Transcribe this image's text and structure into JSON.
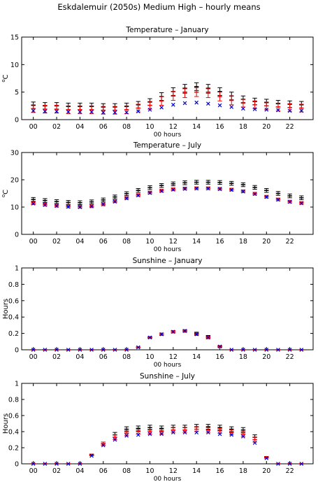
{
  "figure_title": "Eskdalemuir (2050s) Medium High – hourly means",
  "colors": {
    "black_series": "#000000",
    "red_series": "#ff0000",
    "blue_series": "#0000cc"
  },
  "chart_data": [
    {
      "type": "scatter",
      "title": "Temperature – January",
      "xlabel": "00 hours",
      "ylabel": "°C",
      "ylabel_super": "o",
      "ylabel_main": "C",
      "xlim": [
        -1,
        24
      ],
      "ylim": [
        0,
        15
      ],
      "yticks": [
        0,
        5,
        10,
        15
      ],
      "ytick_labels": [
        "0",
        "5",
        "10",
        "15"
      ],
      "xticks": [
        0,
        2,
        4,
        6,
        8,
        10,
        12,
        14,
        16,
        18,
        20,
        22
      ],
      "xtick_labels": [
        "00",
        "02",
        "04",
        "06",
        "08",
        "10",
        "12",
        "14",
        "16",
        "18",
        "20",
        "22"
      ],
      "x": [
        0,
        1,
        2,
        3,
        4,
        5,
        6,
        7,
        8,
        9,
        10,
        11,
        12,
        13,
        14,
        15,
        16,
        17,
        18,
        19,
        20,
        21,
        22,
        23
      ],
      "series": [
        {
          "style": "errorbar",
          "color": "black",
          "values": [
            2.6,
            2.5,
            2.5,
            2.4,
            2.4,
            2.4,
            2.3,
            2.3,
            2.4,
            2.7,
            3.2,
            4.2,
            5.1,
            5.7,
            6.0,
            5.7,
            5.1,
            4.3,
            3.7,
            3.3,
            3.1,
            2.9,
            2.8,
            2.7
          ],
          "err": [
            0.6,
            0.6,
            0.6,
            0.6,
            0.6,
            0.6,
            0.6,
            0.6,
            0.6,
            0.6,
            0.6,
            0.7,
            0.7,
            0.7,
            0.7,
            0.7,
            0.7,
            0.7,
            0.6,
            0.6,
            0.6,
            0.6,
            0.6,
            0.6
          ]
        },
        {
          "style": "errorbar",
          "color": "red",
          "values": [
            2.0,
            1.9,
            1.9,
            1.8,
            1.8,
            1.8,
            1.7,
            1.7,
            1.8,
            2.1,
            2.6,
            3.4,
            4.3,
            4.8,
            5.0,
            4.8,
            4.2,
            3.5,
            3.0,
            2.7,
            2.5,
            2.3,
            2.2,
            2.1
          ],
          "err": [
            0.7,
            0.7,
            0.7,
            0.7,
            0.7,
            0.7,
            0.7,
            0.7,
            0.7,
            0.7,
            0.7,
            0.8,
            0.8,
            0.8,
            0.8,
            0.8,
            0.8,
            0.8,
            0.7,
            0.7,
            0.7,
            0.7,
            0.7,
            0.7
          ]
        },
        {
          "style": "cross",
          "color": "blue",
          "values": [
            1.6,
            1.5,
            1.5,
            1.4,
            1.4,
            1.4,
            1.3,
            1.3,
            1.3,
            1.5,
            1.8,
            2.2,
            2.7,
            3.0,
            3.1,
            2.9,
            2.6,
            2.3,
            2.0,
            1.9,
            1.8,
            1.7,
            1.6,
            1.6
          ]
        }
      ]
    },
    {
      "type": "scatter",
      "title": "Temperature – July",
      "xlabel": "00 hours",
      "ylabel": "°C",
      "ylabel_super": "o",
      "ylabel_main": "C",
      "xlim": [
        -1,
        24
      ],
      "ylim": [
        0,
        30
      ],
      "yticks": [
        0,
        10,
        20,
        30
      ],
      "ytick_labels": [
        "0",
        "10",
        "20",
        "30"
      ],
      "xticks": [
        0,
        2,
        4,
        6,
        8,
        10,
        12,
        14,
        16,
        18,
        20,
        22
      ],
      "xtick_labels": [
        "00",
        "02",
        "04",
        "06",
        "08",
        "10",
        "12",
        "14",
        "16",
        "18",
        "20",
        "22"
      ],
      "x": [
        0,
        1,
        2,
        3,
        4,
        5,
        6,
        7,
        8,
        9,
        10,
        11,
        12,
        13,
        14,
        15,
        16,
        17,
        18,
        19,
        20,
        21,
        22,
        23
      ],
      "series": [
        {
          "style": "errorbar",
          "color": "black",
          "values": [
            12.8,
            12.4,
            12.0,
            11.7,
            11.6,
            11.9,
            12.6,
            13.7,
            14.9,
            16.1,
            17.1,
            17.9,
            18.5,
            18.9,
            19.1,
            19.1,
            19.0,
            18.7,
            18.2,
            17.2,
            16.1,
            15.0,
            14.1,
            13.4
          ],
          "err": [
            0.7,
            0.7,
            0.7,
            0.7,
            0.7,
            0.7,
            0.7,
            0.7,
            0.7,
            0.7,
            0.7,
            0.7,
            0.7,
            0.7,
            0.7,
            0.7,
            0.7,
            0.7,
            0.7,
            0.7,
            0.7,
            0.7,
            0.7,
            0.7
          ]
        },
        {
          "style": "errorbar",
          "color": "red",
          "values": [
            11.4,
            10.9,
            10.5,
            10.2,
            10.1,
            10.3,
            11.0,
            12.1,
            13.3,
            14.4,
            15.3,
            16.0,
            16.5,
            16.8,
            16.9,
            16.9,
            16.7,
            16.4,
            15.8,
            14.9,
            13.8,
            12.8,
            12.0,
            11.5
          ],
          "err": [
            0.5,
            0.5,
            0.5,
            0.5,
            0.5,
            0.5,
            0.5,
            0.5,
            0.5,
            0.5,
            0.5,
            0.5,
            0.5,
            0.5,
            0.5,
            0.5,
            0.5,
            0.5,
            0.5,
            0.5,
            0.5,
            0.5,
            0.5,
            0.5
          ]
        },
        {
          "style": "cross",
          "color": "blue",
          "values": [
            11.3,
            10.8,
            10.4,
            10.1,
            10.0,
            10.3,
            11.0,
            12.0,
            13.2,
            14.3,
            15.2,
            15.9,
            16.4,
            16.7,
            16.8,
            16.8,
            16.6,
            16.3,
            15.7,
            14.8,
            13.7,
            12.7,
            11.9,
            11.4
          ]
        }
      ]
    },
    {
      "type": "scatter",
      "title": "Sunshine – January",
      "xlabel": "00 hours",
      "ylabel": "Hours",
      "xlim": [
        -1,
        24
      ],
      "ylim": [
        0,
        1
      ],
      "yticks": [
        0,
        0.2,
        0.4,
        0.6,
        0.8,
        1
      ],
      "ytick_labels": [
        "0",
        "0.2",
        "0.4",
        "0.6",
        "0.8",
        "1"
      ],
      "xticks": [
        0,
        2,
        4,
        6,
        8,
        10,
        12,
        14,
        16,
        18,
        20,
        22
      ],
      "xtick_labels": [
        "00",
        "02",
        "04",
        "06",
        "08",
        "10",
        "12",
        "14",
        "16",
        "18",
        "20",
        "22"
      ],
      "x": [
        0,
        1,
        2,
        3,
        4,
        5,
        6,
        7,
        8,
        9,
        10,
        11,
        12,
        13,
        14,
        15,
        16,
        17,
        18,
        19,
        20,
        21,
        22,
        23
      ],
      "series": [
        {
          "style": "errorbar",
          "color": "black",
          "values": [
            0,
            0,
            0,
            0,
            0,
            0,
            0,
            0,
            0,
            0.03,
            0.15,
            0.19,
            0.22,
            0.23,
            0.2,
            0.16,
            0.04,
            0,
            0,
            0,
            0,
            0,
            0,
            0
          ],
          "err": [
            0,
            0,
            0,
            0,
            0,
            0,
            0,
            0,
            0,
            0.005,
            0.01,
            0.015,
            0.015,
            0.015,
            0.015,
            0.015,
            0.01,
            0,
            0,
            0,
            0,
            0,
            0,
            0
          ]
        },
        {
          "style": "errorbar",
          "color": "red",
          "values": [
            0,
            0,
            0,
            0,
            0,
            0,
            0,
            0,
            0,
            0.03,
            0.15,
            0.19,
            0.22,
            0.23,
            0.19,
            0.15,
            0.04,
            0,
            0,
            0,
            0,
            0,
            0,
            0
          ],
          "err": [
            0,
            0,
            0,
            0,
            0,
            0,
            0,
            0,
            0,
            0.005,
            0.01,
            0.015,
            0.015,
            0.015,
            0.015,
            0.015,
            0.01,
            0,
            0,
            0,
            0,
            0,
            0,
            0
          ]
        },
        {
          "style": "cross",
          "color": "blue",
          "values": [
            0,
            0,
            0,
            0,
            0,
            0,
            0,
            0,
            0,
            0.03,
            0.15,
            0.19,
            0.22,
            0.23,
            0.19,
            0.15,
            0.04,
            0,
            0,
            0,
            0,
            0,
            0,
            0
          ]
        }
      ]
    },
    {
      "type": "scatter",
      "title": "Sunshine – July",
      "xlabel": "00 hours",
      "ylabel": "Hours",
      "xlim": [
        -1,
        24
      ],
      "ylim": [
        0,
        1
      ],
      "yticks": [
        0,
        0.2,
        0.4,
        0.6,
        0.8,
        1
      ],
      "ytick_labels": [
        "0",
        "0.2",
        "0.4",
        "0.6",
        "0.8",
        "1"
      ],
      "xticks": [
        0,
        2,
        4,
        6,
        8,
        10,
        12,
        14,
        16,
        18,
        20,
        22
      ],
      "xtick_labels": [
        "00",
        "02",
        "04",
        "06",
        "08",
        "10",
        "12",
        "14",
        "16",
        "18",
        "20",
        "22"
      ],
      "x": [
        0,
        1,
        2,
        3,
        4,
        5,
        6,
        7,
        8,
        9,
        10,
        11,
        12,
        13,
        14,
        15,
        16,
        17,
        18,
        19,
        20,
        21,
        22,
        23
      ],
      "series": [
        {
          "style": "errorbar",
          "color": "black",
          "values": [
            0,
            0,
            0,
            0,
            0,
            0.11,
            0.25,
            0.36,
            0.43,
            0.44,
            0.45,
            0.44,
            0.45,
            0.45,
            0.46,
            0.46,
            0.45,
            0.43,
            0.42,
            0.33,
            0.08,
            0,
            0,
            0
          ],
          "err": [
            0,
            0,
            0,
            0,
            0,
            0.01,
            0.02,
            0.03,
            0.03,
            0.03,
            0.03,
            0.03,
            0.03,
            0.03,
            0.03,
            0.03,
            0.03,
            0.03,
            0.03,
            0.03,
            0.01,
            0,
            0,
            0
          ]
        },
        {
          "style": "errorbar",
          "color": "red",
          "values": [
            0,
            0,
            0,
            0,
            0,
            0.11,
            0.25,
            0.33,
            0.38,
            0.4,
            0.4,
            0.4,
            0.42,
            0.42,
            0.43,
            0.42,
            0.41,
            0.39,
            0.37,
            0.3,
            0.08,
            0,
            0,
            0
          ],
          "err": [
            0,
            0,
            0,
            0,
            0,
            0.01,
            0.02,
            0.03,
            0.03,
            0.03,
            0.03,
            0.03,
            0.03,
            0.03,
            0.03,
            0.03,
            0.03,
            0.03,
            0.03,
            0.03,
            0.01,
            0,
            0,
            0
          ]
        },
        {
          "style": "cross",
          "color": "blue",
          "values": [
            0,
            0,
            0,
            0,
            0,
            0.1,
            0.23,
            0.3,
            0.35,
            0.36,
            0.37,
            0.37,
            0.39,
            0.39,
            0.39,
            0.39,
            0.37,
            0.36,
            0.34,
            0.26,
            0.07,
            0,
            0,
            0
          ]
        }
      ]
    }
  ]
}
